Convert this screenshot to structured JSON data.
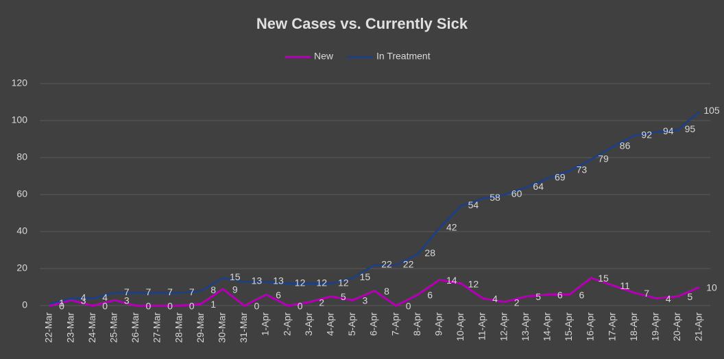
{
  "chart_data": {
    "type": "line",
    "title": "New Cases vs. Currently Sick",
    "categories": [
      "22-Mar",
      "23-Mar",
      "24-Mar",
      "25-Mar",
      "26-Mar",
      "27-Mar",
      "28-Mar",
      "29-Mar",
      "30-Mar",
      "31-Mar",
      "1-Apr",
      "2-Apr",
      "3-Apr",
      "4-Apr",
      "5-Apr",
      "6-Apr",
      "7-Apr",
      "8-Apr",
      "9-Apr",
      "10-Apr",
      "11-Apr",
      "12-Apr",
      "13-Apr",
      "14-Apr",
      "15-Apr",
      "16-Apr",
      "17-Apr",
      "18-Apr",
      "19-Apr",
      "20-Apr",
      "21-Apr"
    ],
    "series": [
      {
        "name": "New",
        "color": "#b400b4",
        "values": [
          0,
          3,
          0,
          3,
          0,
          0,
          0,
          1,
          9,
          0,
          6,
          0,
          2,
          5,
          3,
          8,
          0,
          6,
          14,
          12,
          4,
          2,
          5,
          6,
          6,
          15,
          11,
          7,
          4,
          5,
          10
        ]
      },
      {
        "name": "In Treatment",
        "color": "#1f3f7f",
        "values": [
          1,
          4,
          4,
          7,
          7,
          7,
          7,
          8,
          15,
          13,
          13,
          12,
          12,
          12,
          15,
          22,
          22,
          28,
          42,
          54,
          58,
          60,
          64,
          69,
          73,
          79,
          86,
          92,
          94,
          95,
          105
        ]
      }
    ],
    "ylim": [
      0,
      120
    ],
    "yticks": [
      0,
      20,
      40,
      60,
      80,
      100,
      120
    ],
    "grid": true,
    "legend": "top"
  }
}
